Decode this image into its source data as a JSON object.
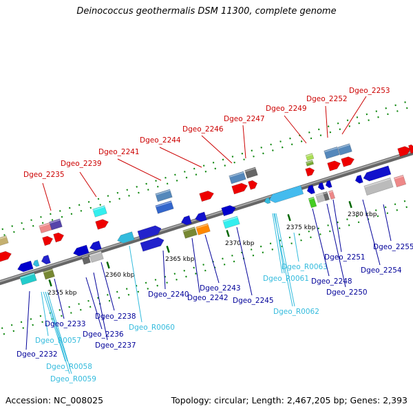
{
  "title": "Deinococcus geothermalis DSM 11300, complete genome",
  "footer": {
    "accession": "Accession: NC_008025",
    "topology": "Topology: circular; Length: 2,467,205 bp; Genes: 2,393"
  },
  "colors": {
    "top_label": "#cc0000",
    "bottom_label": "#000099",
    "rna_label": "#33bbdd",
    "backbone": "#888888",
    "tick": "#118811"
  },
  "scale_labels": [
    "2355 kbp",
    "2360 kbp",
    "2365 kbp",
    "2370 kbp",
    "2375 kbp",
    "2380 kbp"
  ],
  "top_labels": [
    "Dgeo_2235",
    "Dgeo_2239",
    "Dgeo_2241",
    "Dgeo_2244",
    "Dgeo_2246",
    "Dgeo_2247",
    "Dgeo_2249",
    "Dgeo_2252",
    "Dgeo_2253"
  ],
  "bottom_labels": [
    "Dgeo_2232",
    "Dgeo_R0057",
    "Dgeo_R0058",
    "Dgeo_R0059",
    "Dgeo_2233",
    "Dgeo_2236",
    "Dgeo_2237",
    "Dgeo_2238",
    "Dgeo_R0060",
    "Dgeo_2240",
    "Dgeo_2242",
    "Dgeo_2243",
    "Dgeo_2245",
    "Dgeo_R0061",
    "Dgeo_R0062",
    "Dgeo_R0063",
    "Dgeo_2248",
    "Dgeo_2250",
    "Dgeo_2251",
    "Dgeo_2254",
    "Dgeo_2255"
  ]
}
